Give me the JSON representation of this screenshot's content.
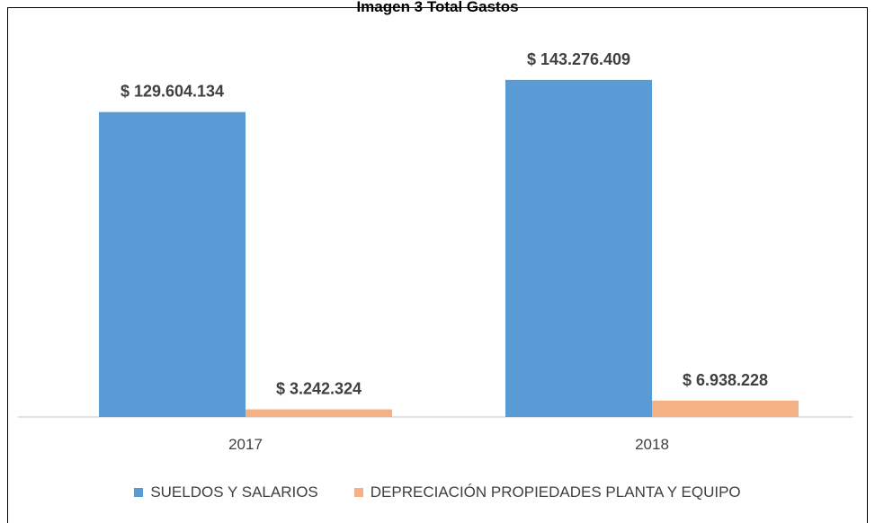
{
  "page_title": "Imagen 3 Total Gastos",
  "chart_data": {
    "type": "bar",
    "title": "",
    "xlabel": "",
    "ylabel": "",
    "categories": [
      "2017",
      "2018"
    ],
    "series": [
      {
        "name": "SUELDOS Y SALARIOS",
        "color": "#5B9BD5",
        "values": [
          129604134,
          143276409
        ],
        "labels": [
          "$ 129.604.134",
          "$ 143.276.409"
        ]
      },
      {
        "name": "DEPRECIACIÓN PROPIEDADES PLANTA Y EQUIPO",
        "color": "#F4B183",
        "values": [
          3242324,
          6938228
        ],
        "labels": [
          "$ 3.242.324",
          "$ 6.938.228"
        ]
      }
    ],
    "ylim": [
      0,
      165000000
    ],
    "grid": false,
    "axis_color": "#d9d9d9",
    "legend_position": "bottom"
  }
}
